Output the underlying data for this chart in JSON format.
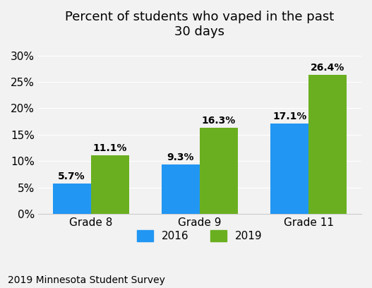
{
  "title": "Percent of students who vaped in the past\n30 days",
  "categories": [
    "Grade 8",
    "Grade 9",
    "Grade 11"
  ],
  "values_2016": [
    5.7,
    9.3,
    17.1
  ],
  "values_2019": [
    11.1,
    16.3,
    26.4
  ],
  "color_2016": "#2196F3",
  "color_2019": "#6AAF20",
  "yticks": [
    0,
    5,
    10,
    15,
    20,
    25,
    30
  ],
  "ylim": [
    0,
    32
  ],
  "ylabel": "",
  "xlabel": "",
  "legend_labels": [
    "2016",
    "2019"
  ],
  "source_text": "2019 Minnesota Student Survey",
  "bar_width": 0.35,
  "label_fontsize": 10,
  "title_fontsize": 13,
  "tick_fontsize": 11,
  "legend_fontsize": 11,
  "source_fontsize": 10
}
